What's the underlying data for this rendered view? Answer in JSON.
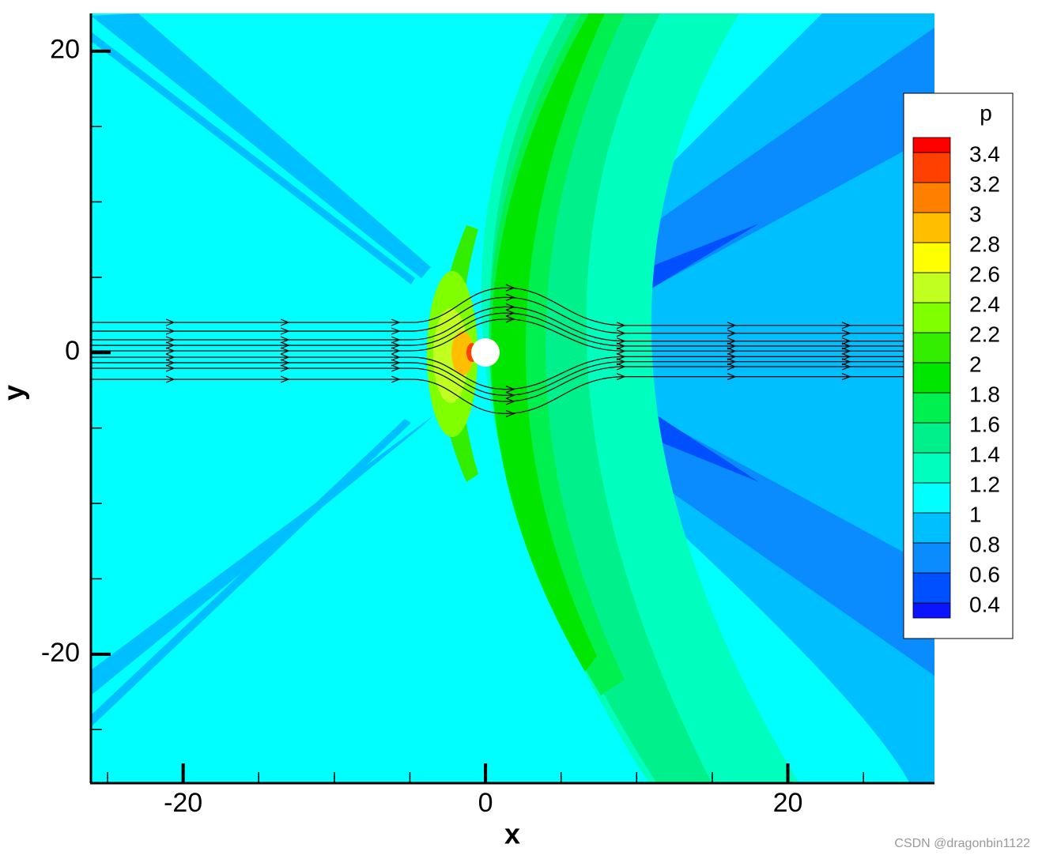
{
  "chart_data": {
    "type": "contour",
    "xlabel": "x",
    "ylabel": "y",
    "xlim": [
      -26.1,
      29.7
    ],
    "ylim": [
      -28.5,
      22.5
    ],
    "xticks": [
      -20,
      0,
      20
    ],
    "yticks": [
      -20,
      0,
      20
    ],
    "xminor_ticks": [
      -25,
      -15,
      -10,
      -5,
      5,
      10,
      15,
      25
    ],
    "yminor_ticks": [
      -25,
      -15,
      -10,
      -5,
      5,
      10,
      15
    ],
    "colorbar": {
      "title": "p",
      "levels": [
        0.4,
        0.6,
        0.8,
        1,
        1.2,
        1.4,
        1.6,
        1.8,
        2,
        2.2,
        2.4,
        2.6,
        2.8,
        3,
        3.2,
        3.4
      ],
      "colors": [
        "#0a14ff",
        "#0050ff",
        "#0a8cff",
        "#00bfff",
        "#00ffff",
        "#00ffbf",
        "#00f08c",
        "#00f050",
        "#00e600",
        "#33ee00",
        "#80ff00",
        "#c0ff20",
        "#ffff00",
        "#ffbf00",
        "#ff8000",
        "#ff4000",
        "#ff0000"
      ]
    },
    "watermark": "CSDN @dragonbin1122"
  }
}
